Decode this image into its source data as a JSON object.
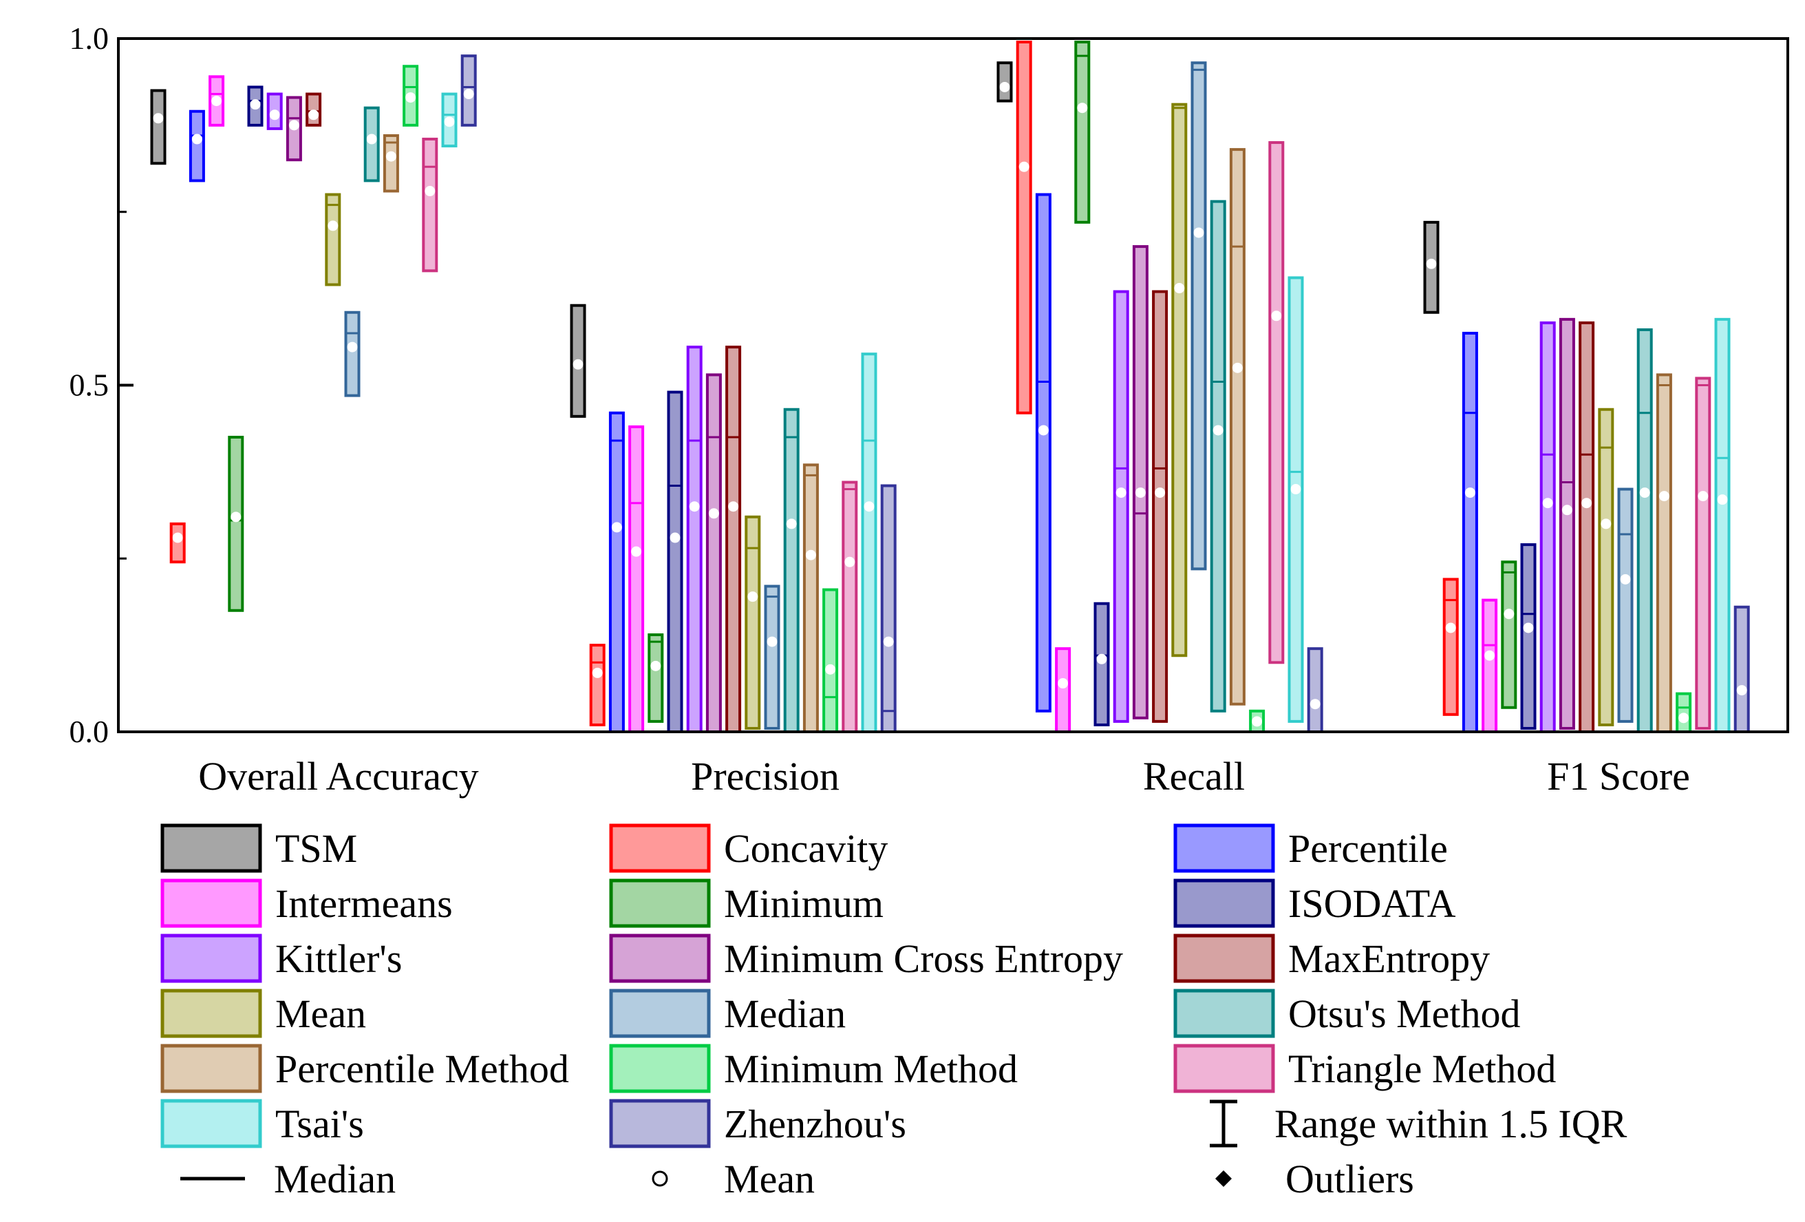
{
  "chart_data": {
    "type": "box",
    "title": "",
    "xlabel": "",
    "ylabel": "",
    "ylim": [
      0,
      1
    ],
    "yticks": [
      "0.0",
      "0.5",
      "1.0"
    ],
    "grid": false,
    "legend_position": "bottom",
    "groups": [
      "Overall Accuracy",
      "Precision",
      "Recall",
      "F1 Score"
    ],
    "series": [
      {
        "name": "TSM",
        "color": "#000000",
        "fill": "#a6a6a6",
        "boxes": [
          [
            0.82,
            0.925,
            0.885,
            0.885
          ],
          [
            0.455,
            0.615,
            0.53,
            0.53
          ],
          [
            0.91,
            0.965,
            0.93,
            0.93
          ],
          [
            0.605,
            0.735,
            0.675,
            0.675
          ]
        ]
      },
      {
        "name": "Concavity",
        "color": "#ff0000",
        "fill": "#ff9999",
        "boxes": [
          [
            0.245,
            0.3,
            0.28,
            0.28
          ],
          [
            0.01,
            0.125,
            0.1,
            0.085
          ],
          [
            0.46,
            0.995,
            1.0,
            0.815
          ],
          [
            0.025,
            0.22,
            0.19,
            0.15
          ]
        ]
      },
      {
        "name": "Percentile",
        "color": "#0000ff",
        "fill": "#9999ff",
        "boxes": [
          [
            0.795,
            0.895,
            0.86,
            0.855
          ],
          [
            0.0,
            0.46,
            0.42,
            0.295
          ],
          [
            0.03,
            0.775,
            0.505,
            0.435
          ],
          [
            0.0,
            0.575,
            0.46,
            0.345
          ]
        ]
      },
      {
        "name": "Intermeans",
        "color": "#ff00ff",
        "fill": "#ff99ff",
        "boxes": [
          [
            0.875,
            0.945,
            0.92,
            0.91
          ],
          [
            0.0,
            0.44,
            0.33,
            0.26
          ],
          [
            0.0,
            0.12,
            0.07,
            0.07
          ],
          [
            0.0,
            0.19,
            0.125,
            0.11
          ]
        ]
      },
      {
        "name": "Minimum",
        "color": "#008000",
        "fill": "#a3d6a3",
        "boxes": [
          [
            0.175,
            0.425,
            0.305,
            0.31
          ],
          [
            0.015,
            0.14,
            0.13,
            0.095
          ],
          [
            0.735,
            0.995,
            0.975,
            0.9
          ],
          [
            0.035,
            0.245,
            0.23,
            0.17
          ]
        ]
      },
      {
        "name": "ISODATA",
        "color": "#000080",
        "fill": "#9999cc",
        "boxes": [
          [
            0.875,
            0.93,
            0.91,
            0.905
          ],
          [
            0.0,
            0.49,
            0.355,
            0.28
          ],
          [
            0.01,
            0.185,
            0.11,
            0.105
          ],
          [
            0.005,
            0.27,
            0.17,
            0.15
          ]
        ]
      },
      {
        "name": "Kittler's",
        "color": "#8000ff",
        "fill": "#cca3ff",
        "boxes": [
          [
            0.87,
            0.92,
            0.89,
            0.89
          ],
          [
            0.0,
            0.555,
            0.42,
            0.325
          ],
          [
            0.015,
            0.635,
            0.38,
            0.345
          ],
          [
            0.0,
            0.59,
            0.4,
            0.33
          ]
        ]
      },
      {
        "name": "Minimum Cross Entropy",
        "color": "#800080",
        "fill": "#d6a3d6",
        "boxes": [
          [
            0.825,
            0.915,
            0.885,
            0.875
          ],
          [
            0.0,
            0.515,
            0.425,
            0.315
          ],
          [
            0.02,
            0.7,
            0.315,
            0.345
          ],
          [
            0.005,
            0.595,
            0.36,
            0.32
          ]
        ]
      },
      {
        "name": "MaxEntropy",
        "color": "#800000",
        "fill": "#d6a3a3",
        "boxes": [
          [
            0.875,
            0.92,
            0.895,
            0.89
          ],
          [
            0.0,
            0.555,
            0.425,
            0.325
          ],
          [
            0.015,
            0.635,
            0.38,
            0.345
          ],
          [
            0.0,
            0.59,
            0.4,
            0.33
          ]
        ]
      },
      {
        "name": "Mean",
        "color": "#808000",
        "fill": "#d6d6a3",
        "boxes": [
          [
            0.645,
            0.775,
            0.76,
            0.73
          ],
          [
            0.005,
            0.31,
            0.265,
            0.195
          ],
          [
            0.11,
            0.905,
            0.9,
            0.64
          ],
          [
            0.01,
            0.465,
            0.41,
            0.3
          ]
        ]
      },
      {
        "name": "Median",
        "color": "#336699",
        "fill": "#b3cce0",
        "boxes": [
          [
            0.485,
            0.605,
            0.575,
            0.555
          ],
          [
            0.005,
            0.21,
            0.195,
            0.13
          ],
          [
            0.235,
            0.965,
            0.955,
            0.72
          ],
          [
            0.015,
            0.35,
            0.285,
            0.22
          ]
        ]
      },
      {
        "name": "Otsu's Method",
        "color": "#008080",
        "fill": "#a3d6d6",
        "boxes": [
          [
            0.795,
            0.9,
            0.855,
            0.855
          ],
          [
            0.0,
            0.465,
            0.425,
            0.3
          ],
          [
            0.03,
            0.765,
            0.505,
            0.435
          ],
          [
            0.0,
            0.58,
            0.46,
            0.345
          ]
        ]
      },
      {
        "name": "Percentile Method",
        "color": "#996633",
        "fill": "#e0ccb3",
        "boxes": [
          [
            0.78,
            0.86,
            0.85,
            0.83
          ],
          [
            0.0,
            0.385,
            0.37,
            0.255
          ],
          [
            0.04,
            0.84,
            0.7,
            0.525
          ],
          [
            0.0,
            0.515,
            0.5,
            0.34
          ]
        ]
      },
      {
        "name": "Minimum Method",
        "color": "#00cc44",
        "fill": "#a3f0bb",
        "boxes": [
          [
            0.875,
            0.96,
            0.93,
            0.915
          ],
          [
            0.0,
            0.205,
            0.05,
            0.09
          ],
          [
            0.0,
            0.03,
            0.015,
            0.015
          ],
          [
            0.0,
            0.055,
            0.035,
            0.02
          ]
        ]
      },
      {
        "name": "Triangle Method",
        "color": "#cc3380",
        "fill": "#f0b3d6",
        "boxes": [
          [
            0.665,
            0.855,
            0.815,
            0.78
          ],
          [
            0.0,
            0.36,
            0.35,
            0.245
          ],
          [
            0.1,
            0.85,
            0.6,
            0.6
          ],
          [
            0.005,
            0.51,
            0.5,
            0.34
          ]
        ]
      },
      {
        "name": "Tsai's",
        "color": "#33cccc",
        "fill": "#b3f0f0",
        "boxes": [
          [
            0.845,
            0.92,
            0.89,
            0.88
          ],
          [
            0.0,
            0.545,
            0.42,
            0.325
          ],
          [
            0.015,
            0.655,
            0.375,
            0.35
          ],
          [
            0.0,
            0.595,
            0.395,
            0.335
          ]
        ]
      },
      {
        "name": "Zhenzhou's",
        "color": "#333399",
        "fill": "#b8b8dc",
        "boxes": [
          [
            0.875,
            0.975,
            0.93,
            0.92
          ],
          [
            0.0,
            0.355,
            0.03,
            0.13
          ],
          [
            0.0,
            0.12,
            0.0,
            0.04
          ],
          [
            0.0,
            0.18,
            0.0,
            0.06
          ]
        ]
      }
    ],
    "legend_extra": [
      {
        "icon": "range-bar",
        "label": "Range within 1.5 IQR"
      },
      {
        "icon": "median-line",
        "label": "Median"
      },
      {
        "icon": "mean-circle",
        "label": "Mean"
      },
      {
        "icon": "outlier-diamond",
        "label": "Outliers"
      }
    ]
  }
}
